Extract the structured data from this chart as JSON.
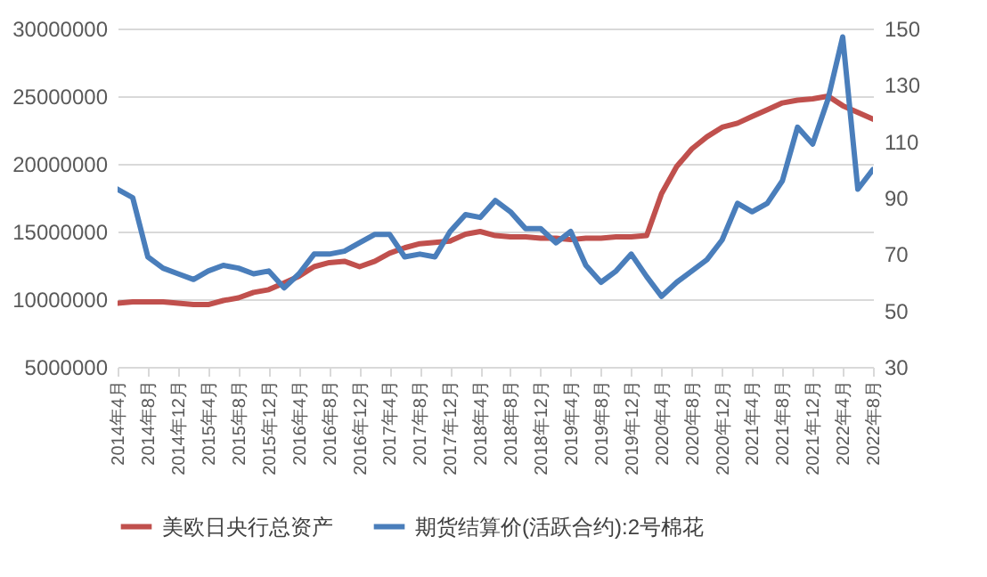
{
  "chart_data": {
    "type": "line",
    "x": [
      "2014-04",
      "2014-06",
      "2014-08",
      "2014-10",
      "2014-12",
      "2015-02",
      "2015-04",
      "2015-06",
      "2015-08",
      "2015-10",
      "2015-12",
      "2016-02",
      "2016-04",
      "2016-06",
      "2016-08",
      "2016-10",
      "2016-12",
      "2017-02",
      "2017-04",
      "2017-06",
      "2017-08",
      "2017-10",
      "2017-12",
      "2018-02",
      "2018-04",
      "2018-06",
      "2018-08",
      "2018-10",
      "2018-12",
      "2019-02",
      "2019-04",
      "2019-06",
      "2019-08",
      "2019-10",
      "2019-12",
      "2020-02",
      "2020-04",
      "2020-06",
      "2020-08",
      "2020-10",
      "2020-12",
      "2021-02",
      "2021-04",
      "2021-06",
      "2021-08",
      "2021-10",
      "2021-12",
      "2022-02",
      "2022-04",
      "2022-06",
      "2022-08"
    ],
    "series": [
      {
        "name": "美欧日央行总资产",
        "color": "#c0504d",
        "values": [
          9700000,
          9800000,
          9800000,
          9800000,
          9700000,
          9600000,
          9600000,
          9900000,
          10100000,
          10500000,
          10700000,
          11200000,
          11700000,
          12400000,
          12700000,
          12800000,
          12400000,
          12800000,
          13400000,
          13800000,
          14100000,
          14200000,
          14300000,
          14800000,
          15000000,
          14700000,
          14600000,
          14600000,
          14500000,
          14500000,
          14400000,
          14500000,
          14500000,
          14600000,
          14600000,
          14700000,
          17800000,
          19800000,
          21100000,
          22000000,
          22700000,
          23000000,
          23500000,
          24000000,
          24500000,
          24700000,
          24800000,
          25000000,
          24300000,
          23800000,
          23300000
        ]
      },
      {
        "name": "期货结算价(活跃合约):2号棉花",
        "color": "#4a7ebb",
        "axis": "y2",
        "values": [
          93,
          90,
          69,
          65,
          63,
          61,
          64,
          66,
          65,
          63,
          64,
          58,
          63,
          70,
          70,
          71,
          74,
          77,
          77,
          69,
          70,
          69,
          78,
          84,
          83,
          89,
          85,
          79,
          79,
          74,
          78,
          66,
          60,
          64,
          70,
          62,
          55,
          60,
          64,
          68,
          75,
          88,
          85,
          88,
          96,
          115,
          109,
          125,
          147,
          93,
          100
        ]
      }
    ],
    "xlim": [
      "2014-04",
      "2022-08"
    ],
    "xticks": [
      {
        "value": "2014-04",
        "label": "2014年4月"
      },
      {
        "value": "2014-08",
        "label": "2014年8月"
      },
      {
        "value": "2014-12",
        "label": "2014年12月"
      },
      {
        "value": "2015-04",
        "label": "2015年4月"
      },
      {
        "value": "2015-08",
        "label": "2015年8月"
      },
      {
        "value": "2015-12",
        "label": "2015年12月"
      },
      {
        "value": "2016-04",
        "label": "2016年4月"
      },
      {
        "value": "2016-08",
        "label": "2016年8月"
      },
      {
        "value": "2016-12",
        "label": "2016年12月"
      },
      {
        "value": "2017-04",
        "label": "2017年4月"
      },
      {
        "value": "2017-08",
        "label": "2017年8月"
      },
      {
        "value": "2017-12",
        "label": "2017年12月"
      },
      {
        "value": "2018-04",
        "label": "2018年4月"
      },
      {
        "value": "2018-08",
        "label": "2018年8月"
      },
      {
        "value": "2018-12",
        "label": "2018年12月"
      },
      {
        "value": "2019-04",
        "label": "2019年4月"
      },
      {
        "value": "2019-08",
        "label": "2019年8月"
      },
      {
        "value": "2019-12",
        "label": "2019年12月"
      },
      {
        "value": "2020-04",
        "label": "2020年4月"
      },
      {
        "value": "2020-08",
        "label": "2020年8月"
      },
      {
        "value": "2020-12",
        "label": "2020年12月"
      },
      {
        "value": "2021-04",
        "label": "2021年4月"
      },
      {
        "value": "2021-08",
        "label": "2021年8月"
      },
      {
        "value": "2021-12",
        "label": "2021年12月"
      },
      {
        "value": "2022-04",
        "label": "2022年4月"
      },
      {
        "value": "2022-08",
        "label": "2022年8月"
      }
    ],
    "ylim": [
      5000000,
      30000000
    ],
    "yticks": [
      5000000,
      10000000,
      15000000,
      20000000,
      25000000,
      30000000
    ],
    "y2lim": [
      30,
      150
    ],
    "y2ticks": [
      30,
      50,
      70,
      90,
      110,
      130,
      150
    ],
    "grid": "y",
    "legend": "bottom",
    "line_style": "solid"
  }
}
